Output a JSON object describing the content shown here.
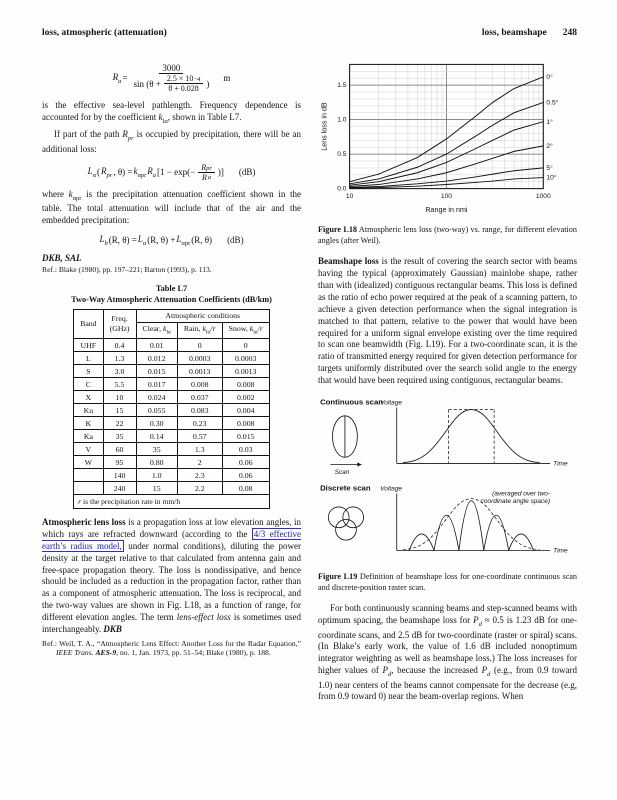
{
  "page": {
    "header_left": "loss, atmospheric (attenuation)",
    "header_right": "loss, beamshape",
    "page_number": "248"
  },
  "left": {
    "eq1": {
      "v0": "R",
      "v0s": "a",
      "rel": " = ",
      "num": "3000",
      "d0": "sin (θ + ",
      "inum": "2.5 × 10",
      "isup": "−4",
      "iden": "θ + 0.028",
      "d1": ")",
      "unit": "m"
    },
    "para1": [
      {
        "t": "is the effective sea-level pathlength. Frequency dependence is accounted for by the coefficient "
      },
      {
        "t": "k",
        "s": "i"
      },
      {
        "t": "lα",
        "s": "sub"
      },
      {
        "t": ", shown in Table L7."
      }
    ],
    "para2": [
      {
        "t": "If part of the path "
      },
      {
        "t": "R",
        "s": "i"
      },
      {
        "t": "pr",
        "s": "sub i"
      },
      {
        "t": " is occupied by precipitation, there will be an additional loss:"
      }
    ],
    "eq2": {
      "v0": "L",
      "v0s": "α",
      "p0": "(",
      "v1": "R",
      "v1s": "pr",
      "p1": ", θ) = ",
      "v2": "k",
      "v2s": "αpr",
      "v3": " R",
      "v3s": "a",
      "p2": " [1 − exp(− ",
      "fn": "R",
      "fns": "pr",
      "fd": "R",
      "fds": "a",
      "p3": ")]",
      "unit": "(dB)"
    },
    "para3": [
      {
        "t": "where "
      },
      {
        "t": "k",
        "s": "i"
      },
      {
        "t": "αpr",
        "s": "sub"
      },
      {
        "t": " is the precipitation attenuation coefficient shown in the table. The total attenuation will include that of the air and the embedded precipitation:"
      }
    ],
    "eq3": {
      "v0": "L",
      "v0s": "b",
      "p0": "(R, θ) = ",
      "v1": "L",
      "v1s": "α",
      "p1": "(R, θ) + ",
      "v2": "L",
      "v2s": "αpr",
      "p2": "(R, θ)",
      "unit": "(dB)"
    },
    "authors": "DKB, SAL",
    "ref1": "Ref.: Blake (1980), pp. 197–221; Barton (1993), p. 113.",
    "table": {
      "title1": "Table L7",
      "title2": "Two-Way Atmospheric Attenuation Coefficients (dB/km)",
      "h_band": "Band",
      "h_freq1": "Freq.",
      "h_freq2": "(GHz)",
      "h_cond": "Atmospheric conditions",
      "cond_headers": [
        {
          "pre": "Clear, ",
          "v": "k",
          "sub": "lα",
          "post": ""
        },
        {
          "pre": "Rain, ",
          "v": "k",
          "sub": "lα",
          "post": "/r"
        },
        {
          "pre": "Snow, ",
          "v": "k",
          "sub": "lα",
          "post": "/r"
        }
      ],
      "rows": [
        [
          "UHF",
          "0.4",
          "0.01",
          "0",
          "0"
        ],
        [
          "L",
          "1.3",
          "0.012",
          "0.0003",
          "0.0003"
        ],
        [
          "S",
          "3.0",
          "0.015",
          "0.0013",
          "0.0013"
        ],
        [
          "C",
          "5.5",
          "0.017",
          "0.008",
          "0.008"
        ],
        [
          "X",
          "10",
          "0.024",
          "0.037",
          "0.002"
        ],
        [
          "Ku",
          "15",
          "0.055",
          "0.083",
          "0.004"
        ],
        [
          "K",
          "22",
          "0.30",
          "0.23",
          "0.008"
        ],
        [
          "Ka",
          "35",
          "0.14",
          "0.57",
          "0.015"
        ],
        [
          "V",
          "60",
          "35",
          "1.3",
          "0.03"
        ],
        [
          "W",
          "95",
          "0.80",
          "2",
          "0.06"
        ],
        [
          "",
          "140",
          "1.0",
          "2.3",
          "0.06"
        ],
        [
          "",
          "240",
          "15",
          "2.2",
          "0.08"
        ]
      ],
      "footnote_pre": "r",
      "footnote_post": " is the precipitation rate in mm/h"
    },
    "para4": [
      {
        "t": "Atmospheric lens loss",
        "s": "b"
      },
      {
        "t": " is a propagation loss at low elevation angles, in which rays are refracted downward (according to the "
      },
      {
        "t": "4/3 effective earth’s radius model,",
        "s": "link",
        "name": "link-effective-earth-radius-model",
        "inter": true
      },
      {
        "t": " under normal conditions), diluting the power density at the target relative to that calculated from antenna gain and free-space propagation theory. The loss is nondissipative, and hence should be included as a reduction in the propagation factor, rather than as a component of atmospheric attenuation. The loss is reciprocal, and the two-way values are shown in Fig. L18, as a function of range, for different elevation angles. The term "
      },
      {
        "t": "lens-effect loss",
        "s": "i"
      },
      {
        "t": " is sometimes used interchangeably. "
      },
      {
        "t": "DKB",
        "s": "bi"
      }
    ],
    "ref2": [
      {
        "t": "Ref.: Weil, T. A., “Atmospheric Lens Effect: Another Loss for the Radar Equation,” "
      },
      {
        "t": "IEEE Trans. ",
        "s": "i"
      },
      {
        "t": "AES-9",
        "s": "bi"
      },
      {
        "t": ", no. 1, Jan. 1973, pp. 51–54; Blake (1980), p. 188."
      }
    ]
  },
  "right": {
    "fig18_caption": [
      {
        "t": "Figure L18",
        "s": "b"
      },
      {
        "t": "  Atmospheric lens loss (two-way) vs. range, for different elevation angles (after Weil)."
      }
    ],
    "beamshape_para": [
      {
        "t": "Beamshape loss",
        "s": "b"
      },
      {
        "t": " is the result of covering the search sector with beams having the typical (approximately Gaussian) mainlobe shape, rather than with (idealized) contiguous rectangular beams. This loss is defined as the ratio of echo power required at the peak of a scanning pattern, to achieve a given detection performance when the signal integration is matched to that pattern, relative to the power that would have been required for a uniform signal envelope existing over the time required to scan one beamwidth (Fig. L19). For a two-coordinate scan, it is the ratio of transmitted energy required for given detection performance for targets uniformly distributed over the search solid angle to the energy that would have been required using contiguous, rectangular beams."
      }
    ],
    "fig19": {
      "continuous_label": "Continuous scan",
      "discrete_label": "Discrete scan",
      "voltage_label": "Voltage",
      "voltage_label2": "Voltage",
      "time_label": "Time",
      "time_label2": "Time",
      "scan_label": "Scan",
      "note_line1": "(averaged over two-",
      "note_line2": "coordinate angle space)"
    },
    "fig19_caption": [
      {
        "t": "Figure L19",
        "s": "b"
      },
      {
        "t": "  Definition of beamshape loss for one-coordinate continuous scan and discrete-position raster scan."
      }
    ],
    "final_para": [
      {
        "t": "For both continuously scanning beams and step-scanned beams with optimum spacing, the beamshape loss for "
      },
      {
        "t": "P",
        "s": "i"
      },
      {
        "t": "d",
        "s": "sub i"
      },
      {
        "t": " ≈ 0.5 is 1.23 dB for one-coordinate scans, and 2.5 dB for two-coordinate (raster or spiral) scans. (In Blake’s early work, the value of 1.6 dB included nonoptimum integrator weighting as well as beamshape loss.) The loss increases for higher values of "
      },
      {
        "t": "P",
        "s": "i"
      },
      {
        "t": "d",
        "s": "sub i"
      },
      {
        "t": ", because the increased "
      },
      {
        "t": "P",
        "s": "i"
      },
      {
        "t": "d",
        "s": "sub i"
      },
      {
        "t": " (e.g., from 0.9 toward 1.0) near centers of the beams cannot compensate for the decrease (e.g, from 0.9 toward 0) near the beam-overlap regions. When"
      }
    ]
  },
  "chart_data": {
    "type": "line",
    "title": "Atmospheric lens loss (two-way) vs. range for different elevation angles",
    "xlabel": "Range in nmi",
    "ylabel": "Lens loss in dB",
    "xscale": "log",
    "xlim": [
      10,
      1000
    ],
    "ylim": [
      0,
      1.8
    ],
    "grid": true,
    "legend_position": "right-of-curves",
    "x": [
      10,
      20,
      50,
      100,
      200,
      300,
      500,
      1000
    ],
    "series": [
      {
        "name": "0°",
        "values": [
          0.1,
          0.21,
          0.45,
          0.72,
          1.05,
          1.25,
          1.45,
          1.62
        ]
      },
      {
        "name": "0.5°",
        "values": [
          0.07,
          0.14,
          0.31,
          0.5,
          0.76,
          0.92,
          1.1,
          1.25
        ]
      },
      {
        "name": "1°",
        "values": [
          0.05,
          0.1,
          0.23,
          0.38,
          0.58,
          0.7,
          0.85,
          0.97
        ]
      },
      {
        "name": "2°",
        "values": [
          0.03,
          0.06,
          0.14,
          0.23,
          0.36,
          0.44,
          0.54,
          0.62
        ]
      },
      {
        "name": "5°",
        "values": [
          0.015,
          0.03,
          0.07,
          0.11,
          0.17,
          0.21,
          0.26,
          0.3
        ]
      },
      {
        "name": "10°",
        "values": [
          0.008,
          0.015,
          0.035,
          0.06,
          0.09,
          0.11,
          0.14,
          0.16
        ]
      }
    ]
  }
}
